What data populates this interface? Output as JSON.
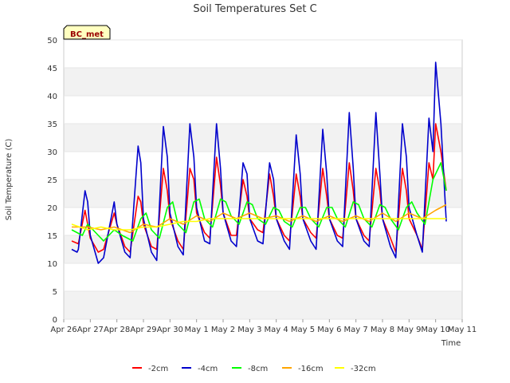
{
  "chart_data": {
    "type": "line",
    "title": "Soil Temperatures Set C",
    "xlabel": "Time",
    "ylabel": "Soil Temperature (C)",
    "badge": "BC_met",
    "ylim": [
      0,
      50
    ],
    "yticks": [
      0,
      5,
      10,
      15,
      20,
      25,
      30,
      35,
      40,
      45,
      50
    ],
    "xlim": [
      0,
      15
    ],
    "xticks": [
      0,
      1,
      2,
      3,
      4,
      5,
      6,
      7,
      8,
      9,
      10,
      11,
      12,
      13,
      14,
      15
    ],
    "xtick_labels": [
      "Apr 26",
      "Apr 27",
      "Apr 28",
      "Apr 29",
      "Apr 30",
      "May 1",
      "May 2",
      "May 3",
      "May 4",
      "May 5",
      "May 6",
      "May 7",
      "May 8",
      "May 9",
      "May 10",
      "May 11"
    ],
    "grid": "horizontal-bands",
    "legend_position": "bottom",
    "series": [
      {
        "name": "-2cm",
        "color": "#ff0000",
        "x": [
          0.3,
          0.55,
          0.8,
          0.9,
          1.0,
          1.3,
          1.5,
          1.9,
          2.0,
          2.3,
          2.5,
          2.8,
          2.9,
          3.0,
          3.3,
          3.5,
          3.75,
          3.9,
          4.0,
          4.3,
          4.5,
          4.75,
          4.9,
          5.0,
          5.3,
          5.5,
          5.75,
          5.9,
          6.0,
          6.3,
          6.5,
          6.75,
          6.9,
          7.0,
          7.3,
          7.5,
          7.75,
          7.9,
          8.0,
          8.3,
          8.5,
          8.75,
          8.9,
          9.0,
          9.3,
          9.5,
          9.75,
          9.9,
          10.0,
          10.3,
          10.5,
          10.75,
          10.9,
          11.0,
          11.3,
          11.5,
          11.75,
          11.9,
          12.0,
          12.3,
          12.5,
          12.75,
          12.9,
          13.0,
          13.3,
          13.5,
          13.75,
          13.9,
          14.0,
          14.2,
          14.4
        ],
        "y": [
          14,
          13.5,
          19.5,
          17,
          14.5,
          12,
          12.5,
          19,
          17,
          13,
          12,
          22,
          21,
          17,
          13,
          12.5,
          27,
          23,
          18,
          14,
          12.5,
          27,
          25,
          19,
          15.5,
          14.5,
          29,
          24,
          19,
          15,
          15,
          25,
          22,
          18,
          16,
          15.5,
          26,
          22,
          18,
          15,
          14,
          26,
          22,
          18,
          15.5,
          14.5,
          27,
          22,
          18,
          15,
          14.5,
          28,
          23,
          18,
          15,
          14,
          27,
          23,
          18,
          14.5,
          12,
          27,
          23,
          18,
          15,
          12.5,
          28,
          25,
          35,
          30,
          23
        ]
      },
      {
        "name": "-4cm",
        "color": "#0000cc",
        "x": [
          0.3,
          0.5,
          0.55,
          0.8,
          0.9,
          1.0,
          1.3,
          1.5,
          1.9,
          2.0,
          2.3,
          2.5,
          2.8,
          2.9,
          3.0,
          3.3,
          3.5,
          3.75,
          3.9,
          4.0,
          4.3,
          4.5,
          4.75,
          4.9,
          5.0,
          5.3,
          5.5,
          5.75,
          5.9,
          6.0,
          6.3,
          6.5,
          6.75,
          6.9,
          7.0,
          7.3,
          7.5,
          7.75,
          7.9,
          8.0,
          8.3,
          8.5,
          8.75,
          8.9,
          9.0,
          9.3,
          9.5,
          9.75,
          9.9,
          10.0,
          10.3,
          10.5,
          10.75,
          10.9,
          11.0,
          11.3,
          11.5,
          11.75,
          11.9,
          12.0,
          12.3,
          12.5,
          12.75,
          12.9,
          13.0,
          13.3,
          13.5,
          13.75,
          13.9,
          14.0,
          14.2,
          14.4
        ],
        "y": [
          12.5,
          12,
          12.5,
          23,
          21,
          15,
          10,
          11,
          21,
          17,
          12,
          11,
          31,
          28,
          18,
          12,
          10.5,
          34.5,
          29,
          19,
          13,
          11.5,
          35,
          29,
          20,
          14,
          13.5,
          35,
          27,
          19,
          14,
          13,
          28,
          26,
          18,
          14,
          13.5,
          28,
          25,
          18,
          14,
          12.5,
          33,
          26,
          18,
          14,
          12.5,
          34,
          26,
          18,
          14,
          13,
          37,
          27,
          18,
          14,
          13,
          37,
          26,
          18,
          13,
          11,
          35,
          29,
          20,
          15,
          12,
          36,
          30,
          46,
          35,
          17.5
        ]
      },
      {
        "name": "-8cm",
        "color": "#00ff00",
        "x": [
          0.3,
          0.7,
          0.9,
          1.1,
          1.5,
          1.9,
          2.2,
          2.6,
          2.9,
          3.1,
          3.3,
          3.6,
          3.9,
          4.1,
          4.3,
          4.6,
          4.9,
          5.1,
          5.3,
          5.6,
          5.9,
          6.1,
          6.3,
          6.6,
          6.9,
          7.1,
          7.3,
          7.6,
          7.9,
          8.1,
          8.3,
          8.6,
          8.9,
          9.1,
          9.3,
          9.6,
          9.9,
          10.1,
          10.3,
          10.6,
          10.9,
          11.1,
          11.3,
          11.6,
          11.9,
          12.1,
          12.3,
          12.6,
          12.9,
          13.1,
          13.3,
          13.6,
          13.9,
          14.2,
          14.4
        ],
        "y": [
          16,
          15,
          17,
          16,
          14,
          16,
          15,
          14,
          18,
          19,
          16,
          14.5,
          20,
          21,
          17,
          15.5,
          21,
          21.5,
          18,
          16.5,
          21.5,
          21,
          18.5,
          17,
          21,
          20.5,
          18,
          17,
          20,
          19.5,
          17.5,
          16.5,
          20,
          20,
          18,
          16.5,
          20,
          20,
          18,
          16.5,
          21,
          20.5,
          18,
          16.5,
          20.5,
          20,
          18,
          16,
          20,
          21,
          19,
          17,
          25,
          28,
          23
        ]
      },
      {
        "name": "-16cm",
        "color": "#ffa500",
        "x": [
          0.3,
          0.9,
          1.4,
          1.9,
          2.5,
          3.0,
          3.5,
          4.0,
          4.5,
          5.0,
          5.5,
          6.0,
          6.5,
          7.0,
          7.5,
          8.0,
          8.5,
          9.0,
          9.5,
          10.0,
          10.5,
          11.0,
          11.5,
          12.0,
          12.5,
          13.0,
          13.5,
          14.0,
          14.4
        ],
        "y": [
          16.5,
          16.5,
          16,
          16.5,
          15.5,
          17,
          16.5,
          18,
          17,
          18.5,
          17.5,
          19,
          18,
          19,
          18,
          18.5,
          17.5,
          18.5,
          17.5,
          18.5,
          17.5,
          18.5,
          17.5,
          19,
          17.5,
          19,
          18,
          19.5,
          20.5
        ]
      },
      {
        "name": "-32cm",
        "color": "#ffff00",
        "x": [
          0.3,
          0.9,
          1.4,
          1.9,
          2.5,
          3.0,
          3.5,
          4.0,
          4.5,
          5.0,
          5.5,
          6.0,
          6.5,
          7.0,
          7.5,
          8.0,
          8.5,
          9.0,
          9.5,
          10.0,
          10.5,
          11.0,
          11.5,
          12.0,
          12.5,
          13.0,
          13.5,
          14.0,
          14.4
        ],
        "y": [
          17,
          16,
          16.5,
          16,
          16,
          16.5,
          16.5,
          17,
          17.5,
          17.5,
          18,
          18,
          18,
          18,
          18,
          18,
          18,
          18,
          18,
          18,
          18,
          18,
          18,
          18,
          18,
          18,
          18,
          18,
          18
        ]
      }
    ]
  }
}
